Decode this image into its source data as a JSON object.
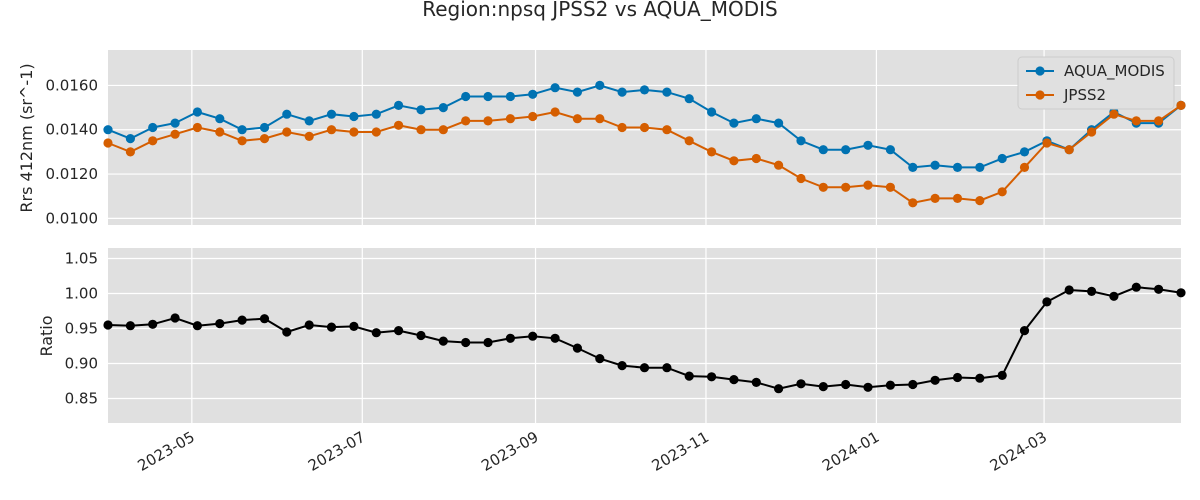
{
  "chart_data": [
    {
      "type": "line",
      "panel": "top",
      "title": "Region:npsq JPSS2 vs AQUA_MODIS",
      "ylabel": "Rrs 412nm (sr^-1)",
      "xlabel": "",
      "ylim": [
        0.0097,
        0.0176
      ],
      "yticks": [
        "0.0100",
        "0.0120",
        "0.0140",
        "0.0160"
      ],
      "ytick_values": [
        0.01,
        0.012,
        0.014,
        0.016
      ],
      "grid": true,
      "legend": "top-right",
      "x": [
        "2023-04-01",
        "2023-04-09",
        "2023-04-17",
        "2023-04-25",
        "2023-05-03",
        "2023-05-11",
        "2023-05-19",
        "2023-05-27",
        "2023-06-04",
        "2023-06-12",
        "2023-06-20",
        "2023-06-28",
        "2023-07-06",
        "2023-07-14",
        "2023-07-22",
        "2023-07-30",
        "2023-08-07",
        "2023-08-15",
        "2023-08-23",
        "2023-08-31",
        "2023-09-08",
        "2023-09-16",
        "2023-09-24",
        "2023-10-02",
        "2023-10-10",
        "2023-10-18",
        "2023-10-26",
        "2023-11-03",
        "2023-11-11",
        "2023-11-19",
        "2023-11-27",
        "2023-12-05",
        "2023-12-13",
        "2023-12-21",
        "2023-12-29",
        "2024-01-06",
        "2024-01-14",
        "2024-01-22",
        "2024-01-30",
        "2024-02-07",
        "2024-02-15",
        "2024-02-23",
        "2024-03-02",
        "2024-03-10",
        "2024-03-18",
        "2024-03-26",
        "2024-04-03",
        "2024-04-11",
        "2024-04-19"
      ],
      "series": [
        {
          "name": "AQUA_MODIS",
          "color": "#0072b2",
          "values": [
            0.014,
            0.0136,
            0.0141,
            0.0143,
            0.0148,
            0.0145,
            0.014,
            0.0141,
            0.0147,
            0.0144,
            0.0147,
            0.0146,
            0.0147,
            0.0151,
            0.0149,
            0.015,
            0.0155,
            0.0155,
            0.0155,
            0.0156,
            0.0159,
            0.0157,
            0.016,
            0.0157,
            0.0158,
            0.0157,
            0.0154,
            0.0148,
            0.0143,
            0.0145,
            0.0143,
            0.0135,
            0.0131,
            0.0131,
            0.0133,
            0.0131,
            0.0123,
            0.0124,
            0.0123,
            0.0123,
            0.0127,
            0.013,
            0.0135,
            0.0131,
            0.014,
            0.0148,
            0.0143,
            0.0143,
            0.0151
          ]
        },
        {
          "name": "JPSS2",
          "color": "#d55e00",
          "values": [
            0.0134,
            0.013,
            0.0135,
            0.0138,
            0.0141,
            0.0139,
            0.0135,
            0.0136,
            0.0139,
            0.0137,
            0.014,
            0.0139,
            0.0139,
            0.0142,
            0.014,
            0.014,
            0.0144,
            0.0144,
            0.0145,
            0.0146,
            0.0148,
            0.0145,
            0.0145,
            0.0141,
            0.0141,
            0.014,
            0.0135,
            0.013,
            0.0126,
            0.0127,
            0.0124,
            0.0118,
            0.0114,
            0.0114,
            0.0115,
            0.0114,
            0.0107,
            0.0109,
            0.0109,
            0.0108,
            0.0112,
            0.0123,
            0.0134,
            0.0131,
            0.0139,
            0.0147,
            0.0144,
            0.0144,
            0.0151
          ]
        }
      ]
    },
    {
      "type": "line",
      "panel": "bottom",
      "title": "",
      "ylabel": "Ratio",
      "xlabel": "",
      "ylim": [
        0.815,
        1.065
      ],
      "yticks": [
        "0.85",
        "0.90",
        "0.95",
        "1.00",
        "1.05"
      ],
      "ytick_values": [
        0.85,
        0.9,
        0.95,
        1.0,
        1.05
      ],
      "grid": true,
      "x": [
        "2023-04-01",
        "2023-04-09",
        "2023-04-17",
        "2023-04-25",
        "2023-05-03",
        "2023-05-11",
        "2023-05-19",
        "2023-05-27",
        "2023-06-04",
        "2023-06-12",
        "2023-06-20",
        "2023-06-28",
        "2023-07-06",
        "2023-07-14",
        "2023-07-22",
        "2023-07-30",
        "2023-08-07",
        "2023-08-15",
        "2023-08-23",
        "2023-08-31",
        "2023-09-08",
        "2023-09-16",
        "2023-09-24",
        "2023-10-02",
        "2023-10-10",
        "2023-10-18",
        "2023-10-26",
        "2023-11-03",
        "2023-11-11",
        "2023-11-19",
        "2023-11-27",
        "2023-12-05",
        "2023-12-13",
        "2023-12-21",
        "2023-12-29",
        "2024-01-06",
        "2024-01-14",
        "2024-01-22",
        "2024-01-30",
        "2024-02-07",
        "2024-02-15",
        "2024-02-23",
        "2024-03-02",
        "2024-03-10",
        "2024-03-18",
        "2024-03-26",
        "2024-04-03",
        "2024-04-11",
        "2024-04-19"
      ],
      "series": [
        {
          "color": "#000000",
          "values": [
            0.955,
            0.954,
            0.956,
            0.965,
            0.954,
            0.957,
            0.962,
            0.964,
            0.945,
            0.955,
            0.952,
            0.953,
            0.944,
            0.947,
            0.94,
            0.932,
            0.93,
            0.93,
            0.936,
            0.939,
            0.936,
            0.922,
            0.907,
            0.897,
            0.894,
            0.894,
            0.882,
            0.881,
            0.877,
            0.873,
            0.864,
            0.871,
            0.867,
            0.87,
            0.866,
            0.869,
            0.87,
            0.876,
            0.88,
            0.879,
            0.883,
            0.947,
            0.988,
            1.005,
            1.003,
            0.996,
            1.009,
            1.006,
            1.001
          ]
        }
      ]
    }
  ],
  "x_axis": {
    "tick_labels": [
      "2023-05",
      "2023-07",
      "2023-09",
      "2023-11",
      "2024-01",
      "2024-03"
    ],
    "tick_dates": [
      "2023-05-01",
      "2023-07-01",
      "2023-09-01",
      "2023-11-01",
      "2024-01-01",
      "2024-03-01"
    ],
    "range": [
      "2023-04-01",
      "2024-04-19"
    ]
  },
  "style": {
    "panel_background": "#e0e0e0",
    "grid_color": "#ffffff"
  }
}
